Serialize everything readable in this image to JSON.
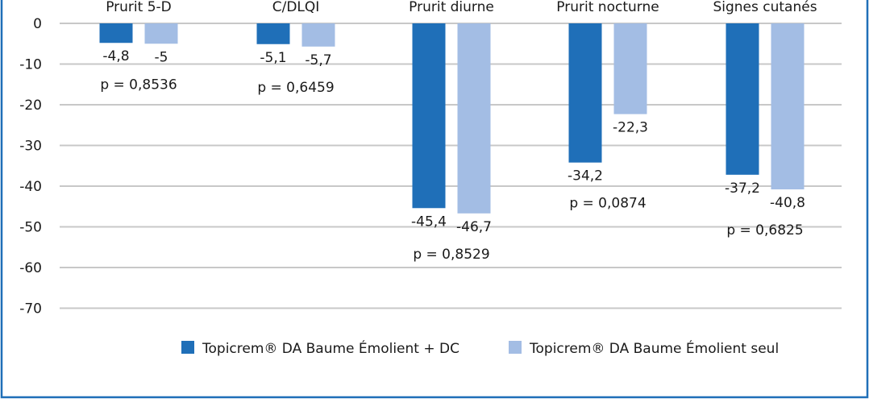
{
  "chart_data": {
    "type": "bar",
    "categories": [
      "Prurit 5-D",
      "C/DLQI",
      "Prurit diurne",
      "Prurit nocturne",
      "Signes cutanés"
    ],
    "series": [
      {
        "name": "Topicrem® DA Baume Émolient + DC",
        "values": [
          -4.8,
          -5.1,
          -45.4,
          -34.2,
          -37.2
        ],
        "labels": [
          "-4,8",
          "-5,1",
          "-45,4",
          "-34,2",
          "-37,2"
        ],
        "color": "#1f6fb8"
      },
      {
        "name": "Topicrem® DA Baume Émolient seul",
        "values": [
          -5,
          -5.7,
          -46.7,
          -22.3,
          -40.8
        ],
        "labels": [
          "-5",
          "-5,7",
          "-46,7",
          "-22,3",
          "-40,8"
        ],
        "color": "#a3bde4"
      }
    ],
    "p_values": [
      "p = 0,8536",
      "p = 0,6459",
      "p = 0,8529",
      "p = 0,0874",
      "p = 0,6825"
    ],
    "y_ticks": [
      "0",
      "-10",
      "-20",
      "-30",
      "-40",
      "-50",
      "-60",
      "-70"
    ],
    "ylim": [
      -70,
      0
    ],
    "grid": true,
    "legend_position": "bottom",
    "frame_color": "#1f6fb8",
    "grid_color": "#c8c8c8"
  }
}
